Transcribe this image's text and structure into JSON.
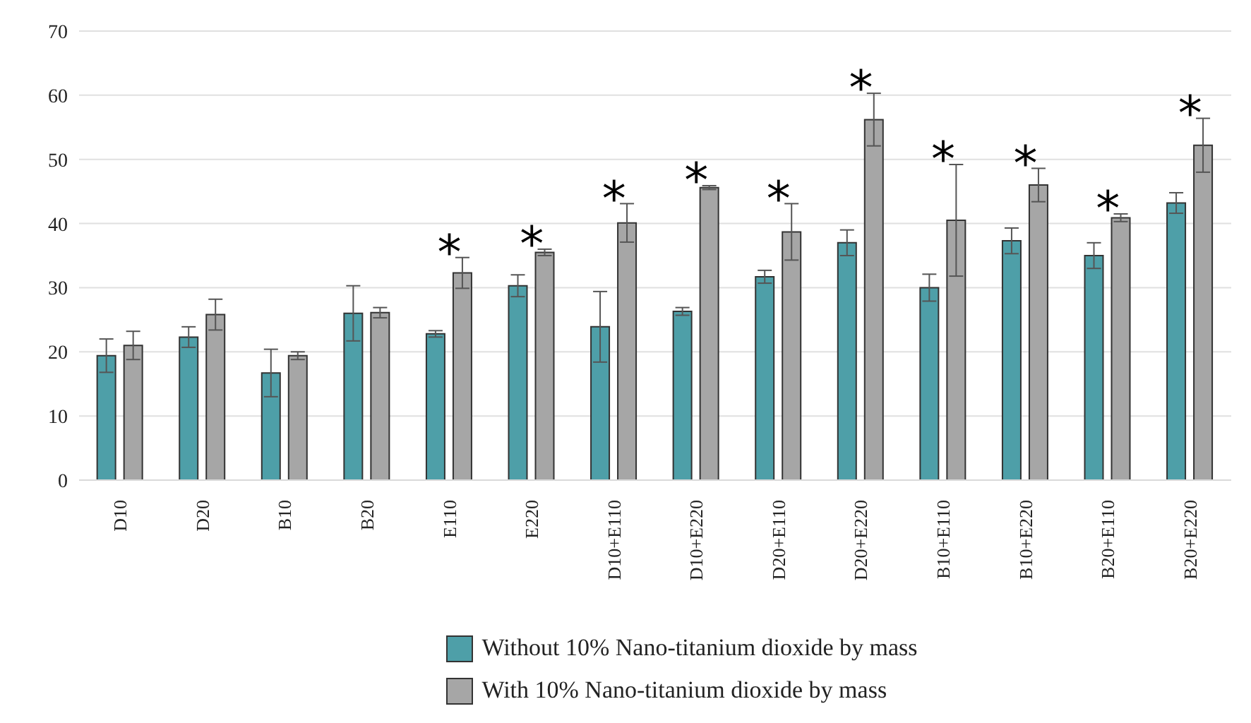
{
  "chart_data": {
    "type": "bar",
    "categories": [
      "D10",
      "D20",
      "B10",
      "B20",
      "E110",
      "E220",
      "D10+E110",
      "D10+E220",
      "D20+E110",
      "D20+E220",
      "B10+E110",
      "B10+E220",
      "B20+E110",
      "B20+E220"
    ],
    "series": [
      {
        "name": "Without 10% Nano-titanium dioxide by mass",
        "color": "#4e9fa8",
        "values": [
          19.4,
          22.3,
          16.7,
          26,
          22.8,
          30.3,
          23.9,
          26.3,
          31.7,
          37,
          30,
          37.3,
          35,
          43.2
        ],
        "errors": [
          2.6,
          1.6,
          3.7,
          4.3,
          0.5,
          1.7,
          5.5,
          0.6,
          1,
          2,
          2.1,
          2,
          2,
          1.6
        ]
      },
      {
        "name": "With 10% Nano-titanium dioxide by mass",
        "color": "#a6a6a6",
        "values": [
          21,
          25.8,
          19.4,
          26.1,
          32.3,
          35.5,
          40.1,
          45.6,
          38.7,
          56.2,
          40.5,
          46,
          40.9,
          52.2
        ],
        "errors": [
          2.2,
          2.4,
          0.6,
          0.8,
          2.4,
          0.5,
          3,
          0.3,
          4.4,
          4.1,
          8.7,
          2.6,
          0.6,
          4.2
        ]
      }
    ],
    "ylim": [
      0,
      70
    ],
    "yticks": [
      0,
      10,
      20,
      30,
      40,
      50,
      60,
      70
    ],
    "grid": "y",
    "legend": "bottom",
    "annotations": [
      {
        "text": "*",
        "x": "E110",
        "y": 32.3
      },
      {
        "text": "*",
        "x": "E220",
        "y": 35.5
      },
      {
        "text": "*",
        "x": "D10+E110",
        "y": 40.1
      },
      {
        "text": "*",
        "x": "D10+E220",
        "y": 45.6
      },
      {
        "text": "*",
        "x": "D20+E110",
        "y": 38.7
      },
      {
        "text": "*",
        "x": "D20+E220",
        "y": 56.2
      },
      {
        "text": "*",
        "x": "B10+E110",
        "y": 40.5
      },
      {
        "text": "*",
        "x": "B10+E220",
        "y": 46
      },
      {
        "text": "*",
        "x": "B20+E110",
        "y": 40.9
      },
      {
        "text": "*",
        "x": "B20+E220",
        "y": 52.2
      }
    ]
  }
}
